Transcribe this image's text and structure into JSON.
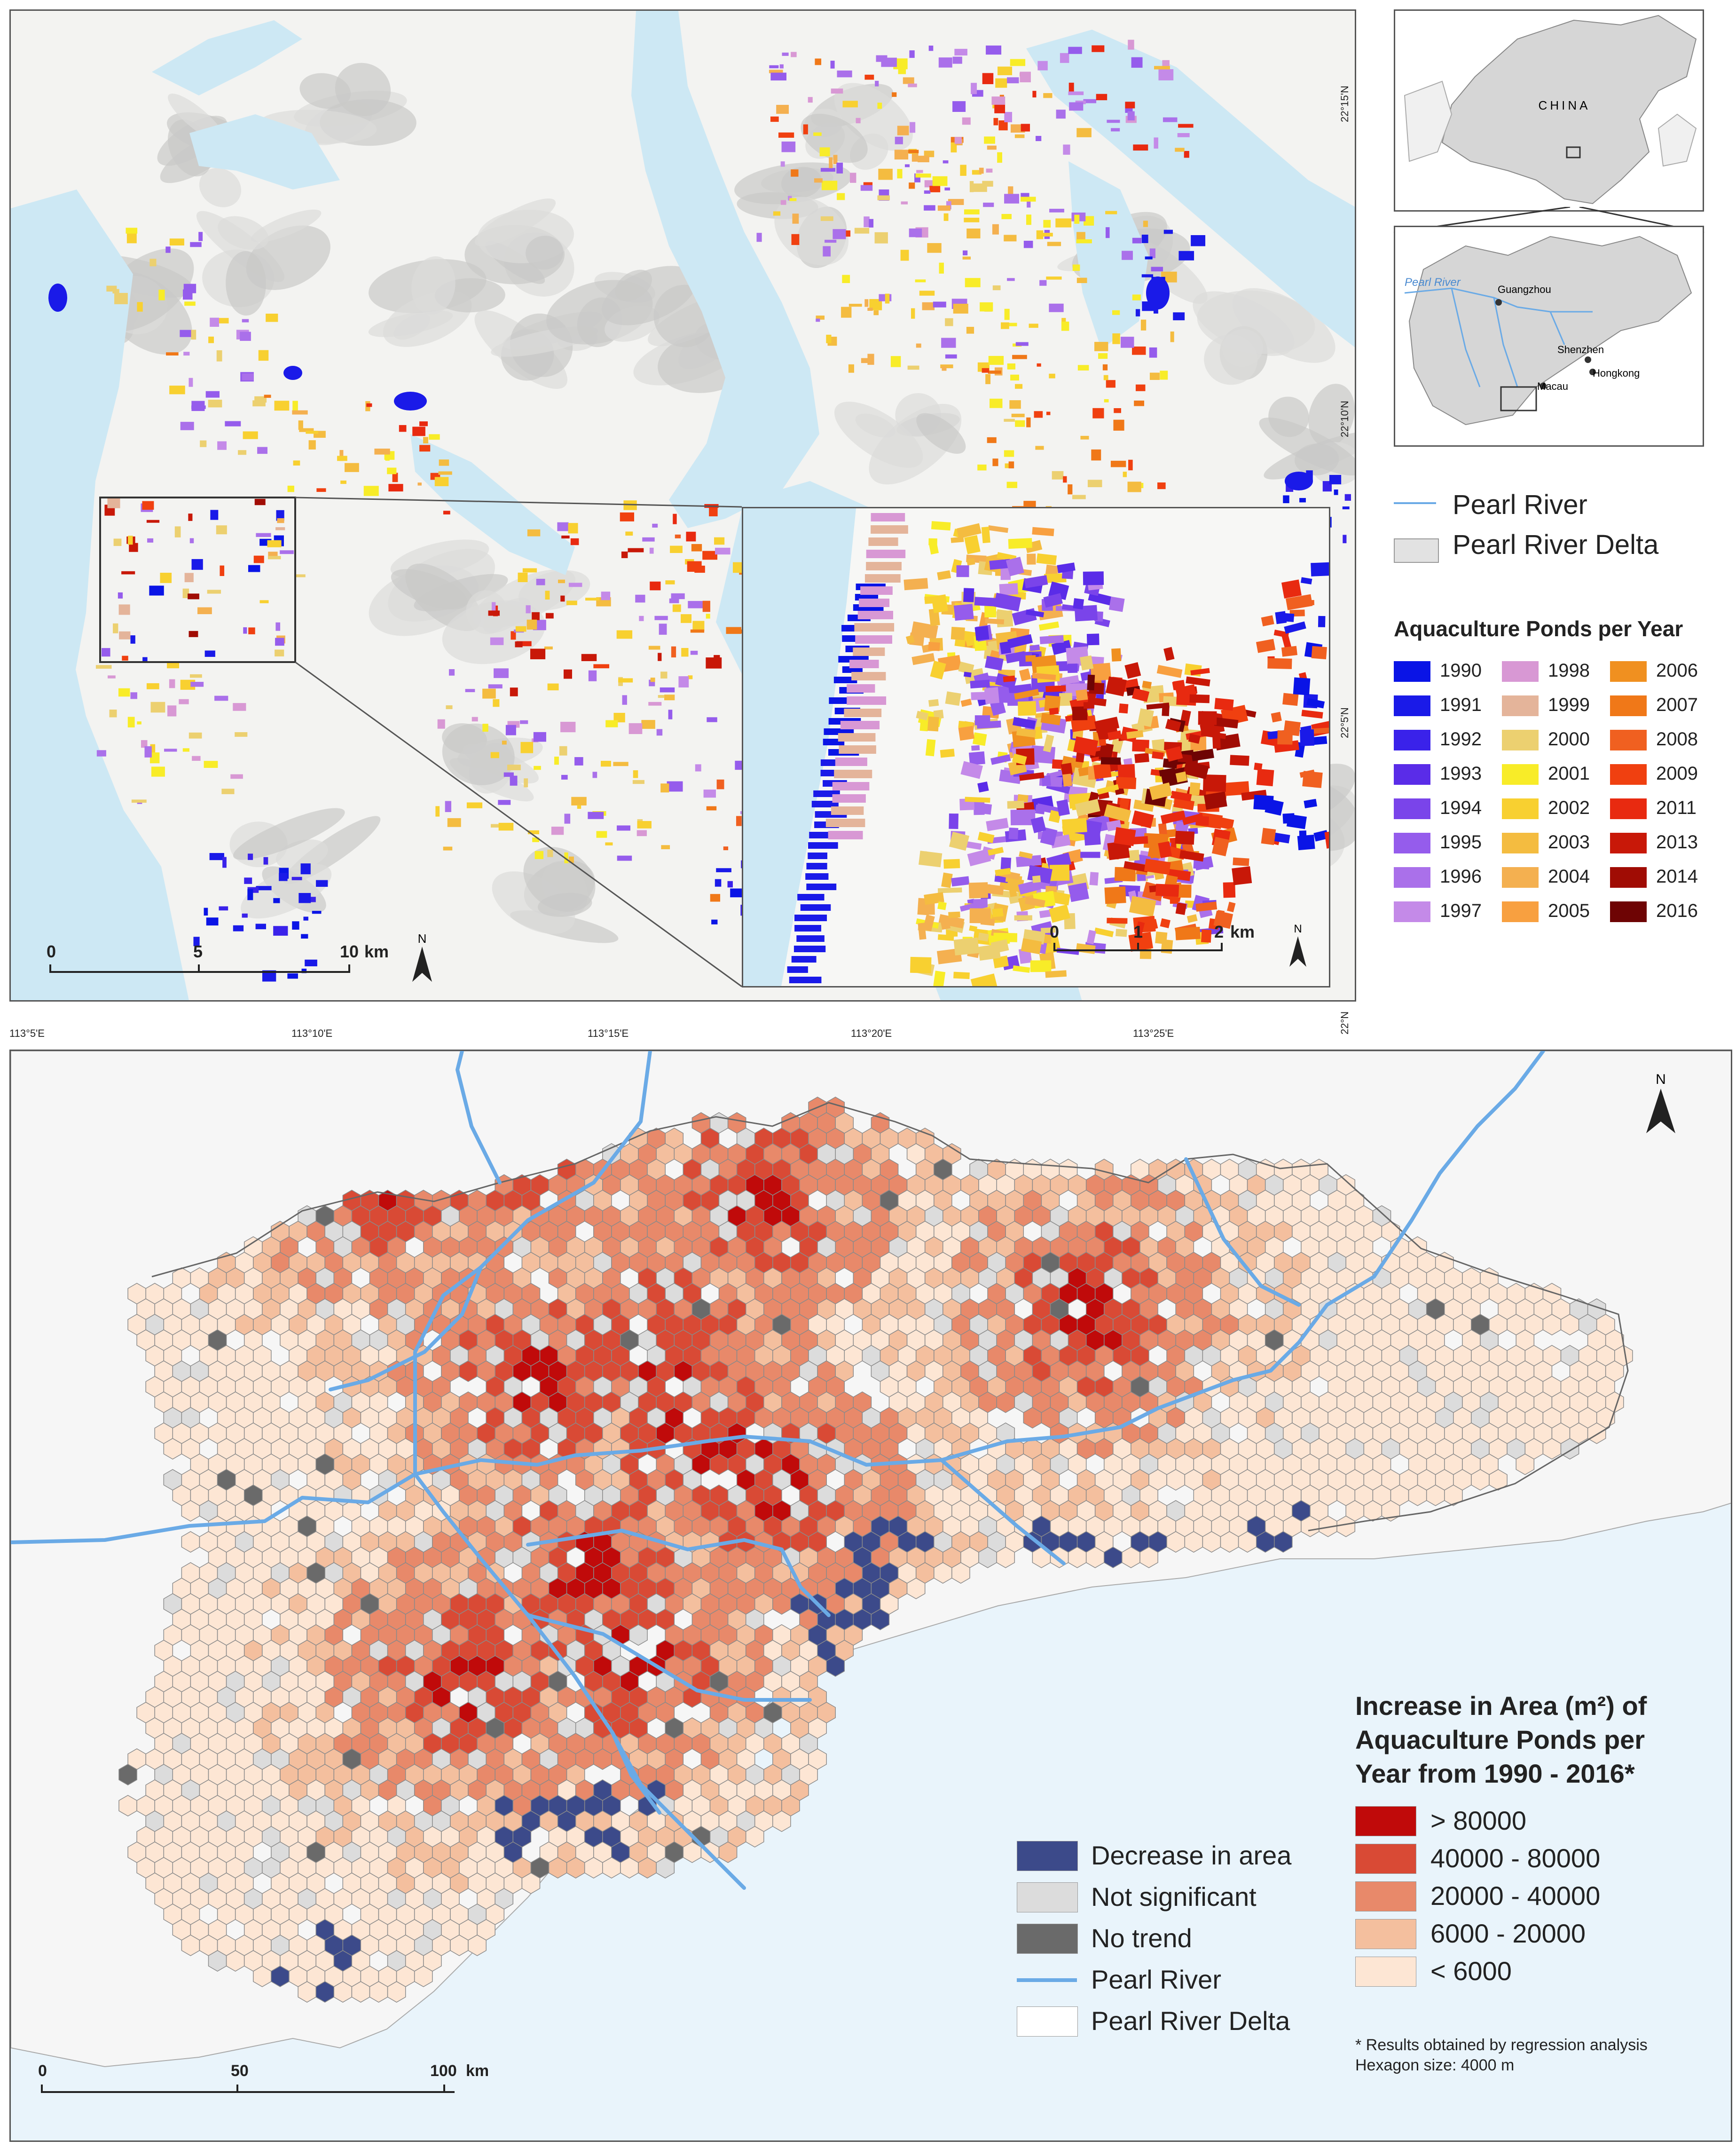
{
  "top_map": {
    "lat_labels": [
      "22°15'N",
      "22°10'N",
      "22°5'N",
      "22°N"
    ],
    "lon_labels": [
      "113°5'E",
      "113°10'E",
      "113°15'E",
      "113°20'E",
      "113°25'E"
    ],
    "scale": {
      "ticks": [
        "0",
        "5",
        "10"
      ],
      "unit": "km"
    },
    "north_symbol": "N",
    "inset_scale": {
      "ticks": [
        "0",
        "1",
        "2"
      ],
      "unit": "km"
    },
    "inset_north": "N"
  },
  "locator": {
    "country_label": "CHINA",
    "river_label": "Pearl River",
    "cities": [
      "Guangzhou",
      "Shenzhen",
      "Hongkong",
      "Macau"
    ]
  },
  "top_legend": {
    "pearl_river": "Pearl River",
    "pearl_river_delta": "Pearl River Delta",
    "title": "Aquaculture Ponds per Year",
    "years": [
      {
        "year": "1990",
        "color": "#0a14e6"
      },
      {
        "year": "1991",
        "color": "#1a1ae8"
      },
      {
        "year": "1992",
        "color": "#3a22ea"
      },
      {
        "year": "1993",
        "color": "#5a2ce8"
      },
      {
        "year": "1994",
        "color": "#7a44ea"
      },
      {
        "year": "1995",
        "color": "#955cec"
      },
      {
        "year": "1996",
        "color": "#aa70ea"
      },
      {
        "year": "1997",
        "color": "#c48ae8"
      },
      {
        "year": "1998",
        "color": "#d898d4"
      },
      {
        "year": "1999",
        "color": "#e4b49a"
      },
      {
        "year": "2000",
        "color": "#ecd070"
      },
      {
        "year": "2001",
        "color": "#f8ec28"
      },
      {
        "year": "2002",
        "color": "#f8d030"
      },
      {
        "year": "2003",
        "color": "#f4bc40"
      },
      {
        "year": "2004",
        "color": "#f4b050"
      },
      {
        "year": "2005",
        "color": "#f8a040"
      },
      {
        "year": "2006",
        "color": "#f09020"
      },
      {
        "year": "2007",
        "color": "#f07818"
      },
      {
        "year": "2008",
        "color": "#f06020"
      },
      {
        "year": "2009",
        "color": "#f04010"
      },
      {
        "year": "2011",
        "color": "#e82a10"
      },
      {
        "year": "2013",
        "color": "#c81808"
      },
      {
        "year": "2014",
        "color": "#a00c04"
      },
      {
        "year": "2016",
        "color": "#6e0404"
      }
    ]
  },
  "bottom_map": {
    "north_symbol": "N",
    "scale": {
      "ticks": [
        "0",
        "50",
        "100"
      ],
      "unit": "km"
    }
  },
  "bottom_legend": {
    "title_lines": [
      "Increase in Area (m²) of",
      "Aquaculture Ponds per",
      "Year from 1990 - 2016*"
    ],
    "classes": [
      {
        "label": "> 80000",
        "color": "#c00a0a"
      },
      {
        "label": "40000 - 80000",
        "color": "#d94a35"
      },
      {
        "label": "20000 - 40000",
        "color": "#e8896a"
      },
      {
        "label": "6000 - 20000",
        "color": "#f4bf9e"
      },
      {
        "label": "< 6000",
        "color": "#fde6d4"
      }
    ],
    "other_items": [
      {
        "label": "Decrease in area",
        "color": "#3c4a8a"
      },
      {
        "label": "Not significant",
        "color": "#dcdcdc"
      },
      {
        "label": "No trend",
        "color": "#6a6a6a"
      },
      {
        "label": "Pearl River",
        "color": "#6aaae6"
      },
      {
        "label": "Pearl River Delta",
        "color": "#ffffff"
      }
    ],
    "footnote_lines": [
      "* Results obtained by regression analysis",
      "Hexagon size: 4000 m"
    ]
  }
}
